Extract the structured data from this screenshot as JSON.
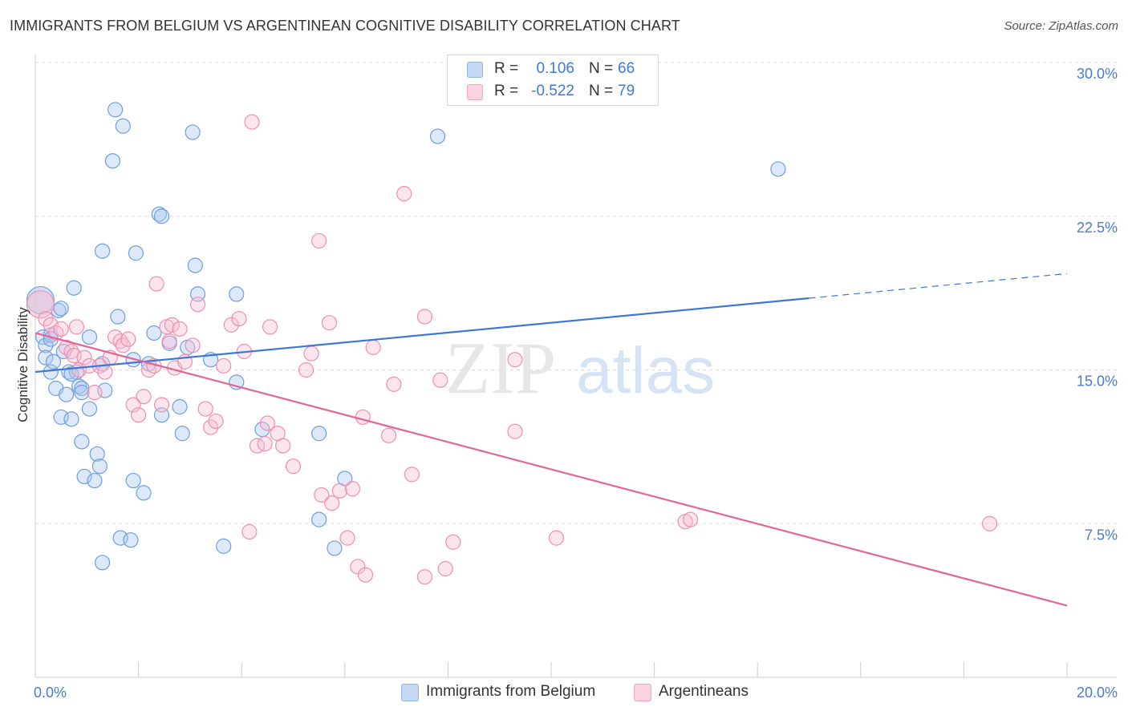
{
  "title": "IMMIGRANTS FROM BELGIUM VS ARGENTINEAN COGNITIVE DISABILITY CORRELATION CHART",
  "source": "Source: ZipAtlas.com",
  "watermark": {
    "zip": "ZIP",
    "atlas": "atlas"
  },
  "legend": {
    "rows": [
      {
        "r_label": "R =",
        "r_value": "0.106",
        "n_label": "N =",
        "n_value": "66",
        "color": "#8fb4e8"
      },
      {
        "r_label": "R =",
        "r_value": "-0.522",
        "n_label": "N =",
        "n_value": "79",
        "color": "#f4a5c0"
      }
    ]
  },
  "bottom_legend": [
    {
      "label": "Immigrants from Belgium",
      "color": "#8fb4e8"
    },
    {
      "label": "Argentineans",
      "color": "#f4a5c0"
    }
  ],
  "colors": {
    "blue_fill": "#a9c6ee",
    "blue_stroke": "#6f9ee0",
    "blue_line": "#3a78d4",
    "pink_fill": "#f7bfd2",
    "pink_stroke": "#ee8fb0",
    "pink_line": "#e26597",
    "grid": "#dddddd",
    "tick_text": "#4a7cc9"
  },
  "chart_data": {
    "type": "scatter",
    "ylabel": "Cognitive Disability",
    "xlim": [
      0,
      20
    ],
    "ylim": [
      0,
      30
    ],
    "x_tick_labels": [
      {
        "value": 0,
        "label": "0.0%"
      },
      {
        "value": 20,
        "label": "20.0%"
      }
    ],
    "y_tick_labels": [
      {
        "value": 7.5,
        "label": "7.5%"
      },
      {
        "value": 15,
        "label": "15.0%"
      },
      {
        "value": 22.5,
        "label": "22.5%"
      },
      {
        "value": 30,
        "label": "30.0%"
      }
    ],
    "grid": true,
    "legend_position": "top-center",
    "series": [
      {
        "name": "Immigrants from Belgium",
        "color": "#8fb4e8",
        "trend": {
          "x_start": 0,
          "y_start": 14.9,
          "x_solid_end": 15,
          "y_solid_end": 18.5,
          "x_end": 20,
          "y_end": 19.7
        },
        "points": [
          [
            0.1,
            18.4,
            "large"
          ],
          [
            0.15,
            16.6
          ],
          [
            0.2,
            16.2
          ],
          [
            0.2,
            15.6
          ],
          [
            0.3,
            16.7
          ],
          [
            0.3,
            14.9
          ],
          [
            0.35,
            15.4
          ],
          [
            0.4,
            14.1
          ],
          [
            0.45,
            17.9
          ],
          [
            0.5,
            18.0
          ],
          [
            0.5,
            12.7
          ],
          [
            0.55,
            15.9
          ],
          [
            0.6,
            13.8
          ],
          [
            0.65,
            14.9
          ],
          [
            0.7,
            12.6
          ],
          [
            0.75,
            19.0
          ],
          [
            0.8,
            14.9
          ],
          [
            0.85,
            14.2
          ],
          [
            0.9,
            14.1
          ],
          [
            0.9,
            13.9
          ],
          [
            0.9,
            11.5
          ],
          [
            0.95,
            9.8
          ],
          [
            1.05,
            13.1
          ],
          [
            1.05,
            16.6
          ],
          [
            1.15,
            9.6
          ],
          [
            1.2,
            10.9
          ],
          [
            1.25,
            10.3
          ],
          [
            1.3,
            20.8
          ],
          [
            1.3,
            5.6
          ],
          [
            1.35,
            14.0
          ],
          [
            1.5,
            25.2
          ],
          [
            1.55,
            27.7
          ],
          [
            1.6,
            17.6
          ],
          [
            1.65,
            6.8
          ],
          [
            1.7,
            26.9
          ],
          [
            1.85,
            6.7
          ],
          [
            1.9,
            9.6
          ],
          [
            1.9,
            15.5
          ],
          [
            1.95,
            20.7
          ],
          [
            2.1,
            9.0
          ],
          [
            2.3,
            16.8
          ],
          [
            2.4,
            22.6
          ],
          [
            2.45,
            22.5
          ],
          [
            2.45,
            12.8
          ],
          [
            2.6,
            16.3
          ],
          [
            2.8,
            13.2
          ],
          [
            2.85,
            11.9
          ],
          [
            2.95,
            16.1
          ],
          [
            3.05,
            26.6
          ],
          [
            3.1,
            20.1
          ],
          [
            3.15,
            18.7
          ],
          [
            3.4,
            15.5
          ],
          [
            3.65,
            6.4
          ],
          [
            3.9,
            14.4
          ],
          [
            3.9,
            18.7
          ],
          [
            4.4,
            12.1
          ],
          [
            5.5,
            11.9
          ],
          [
            5.5,
            7.7
          ],
          [
            5.8,
            6.3
          ],
          [
            6.0,
            9.7
          ],
          [
            7.8,
            26.4
          ],
          [
            14.4,
            24.8
          ],
          [
            1.3,
            15.3
          ],
          [
            2.2,
            15.3
          ],
          [
            0.3,
            16.5
          ],
          [
            0.7,
            14.8
          ]
        ]
      },
      {
        "name": "Argentineans",
        "color": "#f4a5c0",
        "trend": {
          "x_start": 0,
          "y_start": 16.8,
          "x_end": 20,
          "y_end": 3.5
        },
        "points": [
          [
            0.1,
            18.2,
            "large"
          ],
          [
            0.2,
            17.5
          ],
          [
            0.3,
            17.2
          ],
          [
            0.4,
            16.8
          ],
          [
            0.5,
            17.0
          ],
          [
            0.6,
            16.1
          ],
          [
            0.7,
            15.9
          ],
          [
            0.75,
            15.7
          ],
          [
            0.8,
            17.1
          ],
          [
            0.85,
            15.0
          ],
          [
            0.95,
            15.6
          ],
          [
            1.05,
            15.2
          ],
          [
            1.15,
            13.9
          ],
          [
            1.25,
            15.2
          ],
          [
            1.35,
            14.9
          ],
          [
            1.45,
            15.6
          ],
          [
            1.55,
            16.6
          ],
          [
            1.65,
            16.4
          ],
          [
            1.7,
            16.2
          ],
          [
            1.8,
            16.5
          ],
          [
            1.9,
            13.3
          ],
          [
            2.0,
            12.8
          ],
          [
            2.1,
            13.7
          ],
          [
            2.2,
            15.0
          ],
          [
            2.3,
            15.2
          ],
          [
            2.35,
            19.2
          ],
          [
            2.45,
            13.3
          ],
          [
            2.55,
            17.1
          ],
          [
            2.65,
            17.2
          ],
          [
            2.7,
            15.1
          ],
          [
            2.8,
            17.0
          ],
          [
            2.9,
            15.4
          ],
          [
            3.05,
            16.2
          ],
          [
            3.15,
            18.2
          ],
          [
            3.3,
            13.1
          ],
          [
            3.4,
            12.2
          ],
          [
            3.5,
            12.5
          ],
          [
            3.65,
            15.2
          ],
          [
            3.8,
            17.2
          ],
          [
            3.95,
            17.5
          ],
          [
            4.05,
            15.9
          ],
          [
            4.15,
            7.1
          ],
          [
            4.3,
            11.3
          ],
          [
            4.45,
            11.4
          ],
          [
            4.5,
            12.4
          ],
          [
            4.55,
            17.1
          ],
          [
            4.7,
            11.9
          ],
          [
            4.8,
            11.3
          ],
          [
            5.0,
            10.3
          ],
          [
            5.25,
            15.0
          ],
          [
            5.35,
            15.8
          ],
          [
            5.5,
            21.3
          ],
          [
            5.55,
            8.9
          ],
          [
            5.7,
            17.3
          ],
          [
            5.75,
            8.5
          ],
          [
            5.9,
            9.1
          ],
          [
            6.05,
            6.8
          ],
          [
            6.15,
            9.2
          ],
          [
            6.25,
            5.4
          ],
          [
            6.35,
            12.7
          ],
          [
            6.4,
            5.0
          ],
          [
            6.55,
            16.1
          ],
          [
            6.85,
            11.8
          ],
          [
            6.95,
            14.3
          ],
          [
            7.15,
            23.6
          ],
          [
            7.3,
            9.9
          ],
          [
            7.55,
            17.6
          ],
          [
            7.55,
            4.9
          ],
          [
            7.85,
            14.5
          ],
          [
            7.95,
            5.3
          ],
          [
            8.1,
            6.6
          ],
          [
            9.3,
            15.5
          ],
          [
            9.3,
            12.0
          ],
          [
            10.1,
            6.8
          ],
          [
            4.2,
            27.1
          ],
          [
            12.6,
            7.6
          ],
          [
            12.7,
            7.7
          ],
          [
            18.5,
            7.5
          ],
          [
            2.6,
            16.4
          ]
        ]
      }
    ]
  }
}
